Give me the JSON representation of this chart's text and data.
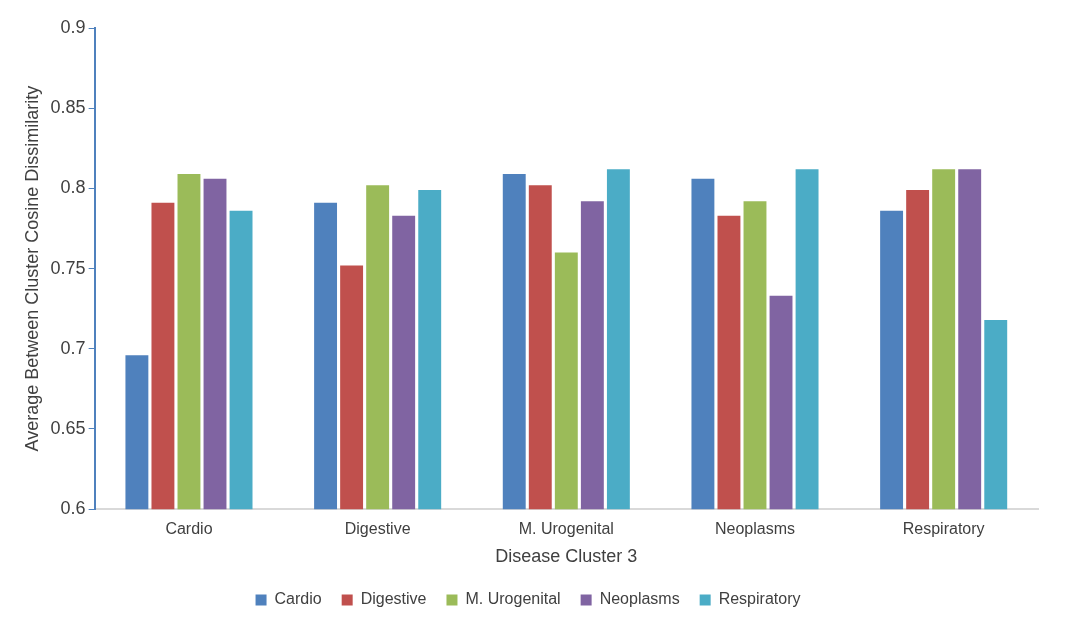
{
  "chart_data": {
    "type": "bar",
    "xlabel": "Disease Cluster 3",
    "ylabel": "Average Between Cluster Cosine Dissimilarity",
    "categories": [
      "Cardio",
      "Digestive",
      "M. Urogenital",
      "Neoplasms",
      "Respiratory"
    ],
    "series": [
      {
        "name": "Cardio",
        "color": "#4f81bd",
        "values": [
          0.696,
          0.791,
          0.809,
          0.806,
          0.786
        ]
      },
      {
        "name": "Digestive",
        "color": "#c0504d",
        "values": [
          0.791,
          0.752,
          0.802,
          0.783,
          0.799
        ]
      },
      {
        "name": "M. Urogenital",
        "color": "#9bbb59",
        "values": [
          0.809,
          0.802,
          0.76,
          0.792,
          0.812
        ]
      },
      {
        "name": "Neoplasms",
        "color": "#8064a2",
        "values": [
          0.806,
          0.783,
          0.792,
          0.733,
          0.812
        ]
      },
      {
        "name": "Respiratory",
        "color": "#4bacc6",
        "values": [
          0.786,
          0.799,
          0.812,
          0.812,
          0.718
        ]
      }
    ],
    "ylim": [
      0.6,
      0.9
    ],
    "yticks": [
      0.6,
      0.65,
      0.7,
      0.75,
      0.8,
      0.85,
      0.9
    ],
    "grid": false,
    "legend": "bottom"
  }
}
